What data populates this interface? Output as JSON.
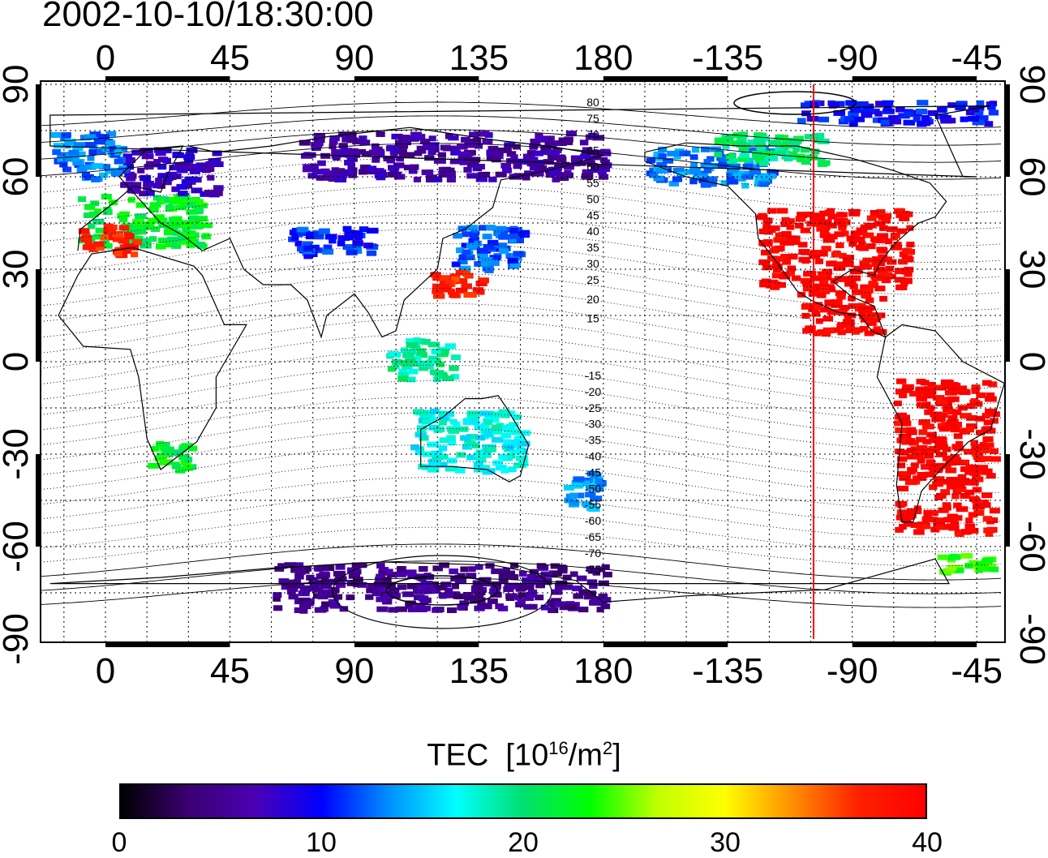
{
  "title": "2002-10-10/18:30:00",
  "map": {
    "lon_ticks": [
      "0",
      "45",
      "90",
      "135",
      "180",
      "-135",
      "-90",
      "-45"
    ],
    "lat_ticks": [
      "90",
      "60",
      "30",
      "0",
      "-30",
      "-60",
      "-90"
    ],
    "contour_labels_north": [
      "80",
      "75",
      "70",
      "65",
      "60",
      "55",
      "50",
      "45",
      "40",
      "35",
      "30",
      "25",
      "20",
      "15"
    ],
    "contour_labels_south": [
      "-15",
      "-20",
      "-25",
      "-30",
      "-35",
      "-40",
      "-45",
      "-50",
      "-55",
      "-60",
      "-65",
      "-70",
      "-75"
    ],
    "subsolar_longitude": -97.5,
    "regions": [
      {
        "lon": [
          -10,
          35
        ],
        "lat": [
          38,
          55
        ],
        "tec": 22
      },
      {
        "lon": [
          -10,
          10
        ],
        "lat": [
          35,
          45
        ],
        "tec": 37
      },
      {
        "lon": [
          5,
          40
        ],
        "lat": [
          55,
          70
        ],
        "tec": 7
      },
      {
        "lon": [
          -20,
          5
        ],
        "lat": [
          60,
          75
        ],
        "tec": 13
      },
      {
        "lon": [
          65,
          95
        ],
        "lat": [
          35,
          45
        ],
        "tec": 11
      },
      {
        "lon": [
          125,
          150
        ],
        "lat": [
          30,
          45
        ],
        "tec": 12
      },
      {
        "lon": [
          115,
          135
        ],
        "lat": [
          22,
          30
        ],
        "tec": 37
      },
      {
        "lon": [
          -125,
          -70
        ],
        "lat": [
          25,
          50
        ],
        "tec": 40
      },
      {
        "lon": [
          -110,
          -80
        ],
        "lat": [
          10,
          25
        ],
        "tec": 40
      },
      {
        "lon": [
          -165,
          -120
        ],
        "lat": [
          58,
          70
        ],
        "tec": 13
      },
      {
        "lon": [
          -140,
          -100
        ],
        "lat": [
          65,
          75
        ],
        "tec": 20
      },
      {
        "lon": [
          -75,
          -40
        ],
        "lat": [
          -55,
          -5
        ],
        "tec": 40
      },
      {
        "lon": [
          110,
          150
        ],
        "lat": [
          -35,
          -15
        ],
        "tec": 17
      },
      {
        "lon": [
          165,
          178
        ],
        "lat": [
          -47,
          -35
        ],
        "tec": 14
      },
      {
        "lon": [
          15,
          30
        ],
        "lat": [
          -35,
          -25
        ],
        "tec": 22
      },
      {
        "lon": [
          100,
          125
        ],
        "lat": [
          -5,
          8
        ],
        "tec": 19
      },
      {
        "lon": [
          60,
          180
        ],
        "lat": [
          -80,
          -65
        ],
        "tec": 5
      },
      {
        "lon": [
          70,
          180
        ],
        "lat": [
          60,
          75
        ],
        "tec": 6
      },
      {
        "lon": [
          -60,
          -40
        ],
        "lat": [
          -68,
          -62
        ],
        "tec": 24
      },
      {
        "lon": [
          -110,
          -40
        ],
        "lat": [
          78,
          85
        ],
        "tec": 10
      }
    ]
  },
  "colorbar": {
    "label": "TEC",
    "unit_prefix": "[10",
    "unit_exp": "16",
    "unit_mid": "/m",
    "unit_exp2": "2",
    "unit_suffix": "]",
    "min": 0,
    "max": 40,
    "ticks": [
      "0",
      "10",
      "20",
      "30",
      "40"
    ],
    "colors": [
      "#000000",
      "#3a0070",
      "#4b00b4",
      "#0000ff",
      "#0090ff",
      "#00ffff",
      "#00e070",
      "#00ff00",
      "#c0ff00",
      "#ffff00",
      "#ff9000",
      "#ff2000",
      "#ff0000"
    ]
  }
}
